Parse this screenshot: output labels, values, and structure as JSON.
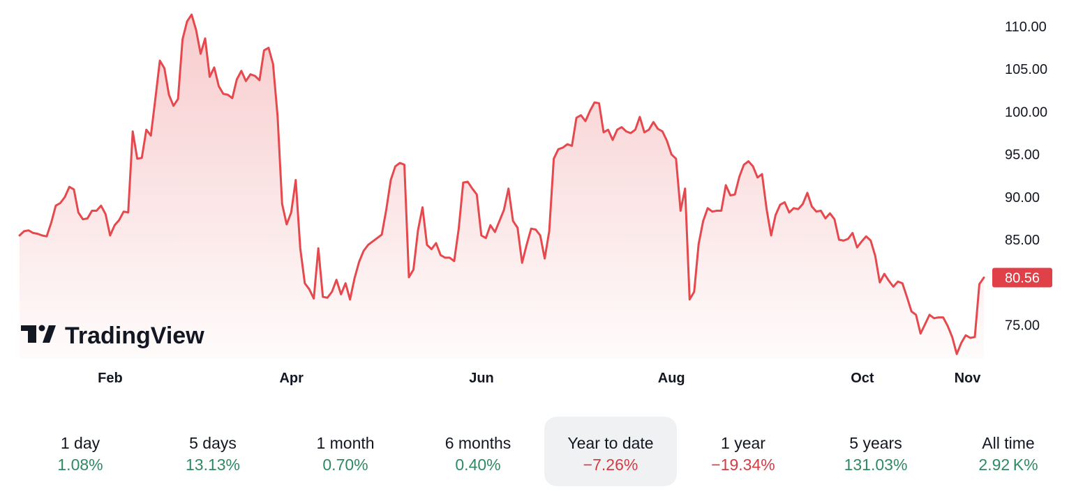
{
  "chart_data": {
    "type": "area",
    "ylim": [
      71,
      112
    ],
    "y_ticks": [
      "110.00",
      "105.00",
      "100.00",
      "95.00",
      "90.00",
      "85.00",
      "75.00"
    ],
    "x_ticks": [
      "Feb",
      "Apr",
      "Jun",
      "Aug",
      "Oct",
      "Nov"
    ],
    "last_price": "80.56",
    "series": [
      {
        "values": [
          85.5,
          86.0,
          86.1,
          85.8,
          85.7,
          85.5,
          85.4,
          87.0,
          89.0,
          89.3,
          90.0,
          91.2,
          90.9,
          88.2,
          87.4,
          87.5,
          88.4,
          88.4,
          89.0,
          88.0,
          85.5,
          86.7,
          87.3,
          88.3,
          88.2,
          97.7,
          94.5,
          94.6,
          97.9,
          97.2,
          101.5,
          106.0,
          105.1,
          102.0,
          100.7,
          101.5,
          108.5,
          110.6,
          111.4,
          109.6,
          106.8,
          108.6,
          104.1,
          105.2,
          103.0,
          102.1,
          102.0,
          101.6,
          103.8,
          104.8,
          103.6,
          104.4,
          104.2,
          103.7,
          107.2,
          107.5,
          105.6,
          99.5,
          89.2,
          86.8,
          88.2,
          92.0,
          84.0,
          79.9,
          79.2,
          78.1,
          84.0,
          78.3,
          78.2,
          78.9,
          80.3,
          78.6,
          79.9,
          78.0,
          80.5,
          82.4,
          83.7,
          84.4,
          84.8,
          85.2,
          85.6,
          88.5,
          92.0,
          93.6,
          94.0,
          93.8,
          80.6,
          81.5,
          86.1,
          88.8,
          84.4,
          83.9,
          84.6,
          83.2,
          82.9,
          82.9,
          82.5,
          86.3,
          91.7,
          91.8,
          91.0,
          90.3,
          85.5,
          85.2,
          86.7,
          85.9,
          87.2,
          88.5,
          91.0,
          87.2,
          86.4,
          82.3,
          84.4,
          86.3,
          86.2,
          85.5,
          82.8,
          86.0,
          94.5,
          95.6,
          95.8,
          96.2,
          96.0,
          99.3,
          99.6,
          98.9,
          100.1,
          101.1,
          101.0,
          97.6,
          97.9,
          96.7,
          97.9,
          98.2,
          97.7,
          97.5,
          97.9,
          99.4,
          97.6,
          97.9,
          98.8,
          98.0,
          97.7,
          96.6,
          95.0,
          94.5,
          88.4,
          91.0,
          78.0,
          78.9,
          84.5,
          87.2,
          88.7,
          88.3,
          88.4,
          88.4,
          91.4,
          90.2,
          90.3,
          92.4,
          93.8,
          94.2,
          93.6,
          92.3,
          92.7,
          88.6,
          85.5,
          87.9,
          89.1,
          89.4,
          88.2,
          88.7,
          88.6,
          89.2,
          90.5,
          88.9,
          88.3,
          88.4,
          87.5,
          88.1,
          87.4,
          85.0,
          84.9,
          85.1,
          85.8,
          84.1,
          84.8,
          85.4,
          84.9,
          83.1,
          80.0,
          81.0,
          80.2,
          79.5,
          80.1,
          79.9,
          78.3,
          76.6,
          76.2,
          74.0,
          75.1,
          76.2,
          75.8,
          75.9,
          75.9,
          74.9,
          73.6,
          71.6,
          72.9,
          73.8,
          73.5,
          73.6,
          79.8,
          80.56
        ]
      }
    ]
  },
  "logo": {
    "text": "TradingView"
  },
  "periods": [
    {
      "label": "1 day",
      "value": "1.08%",
      "trend": "pos",
      "active": false
    },
    {
      "label": "5 days",
      "value": "13.13%",
      "trend": "pos",
      "active": false
    },
    {
      "label": "1 month",
      "value": "0.70%",
      "trend": "pos",
      "active": false
    },
    {
      "label": "6 months",
      "value": "0.40%",
      "trend": "pos",
      "active": false
    },
    {
      "label": "Year to date",
      "value": "−7.26%",
      "trend": "neg",
      "active": true
    },
    {
      "label": "1 year",
      "value": "−19.34%",
      "trend": "neg",
      "active": false
    },
    {
      "label": "5 years",
      "value": "131.03%",
      "trend": "pos",
      "active": false
    },
    {
      "label": "All time",
      "value": "2.92 K%",
      "trend": "pos",
      "active": false
    }
  ],
  "colors": {
    "line": "#e5484d",
    "badge": "#e04148",
    "positive": "#2f8a63",
    "negative": "#d33c44"
  }
}
